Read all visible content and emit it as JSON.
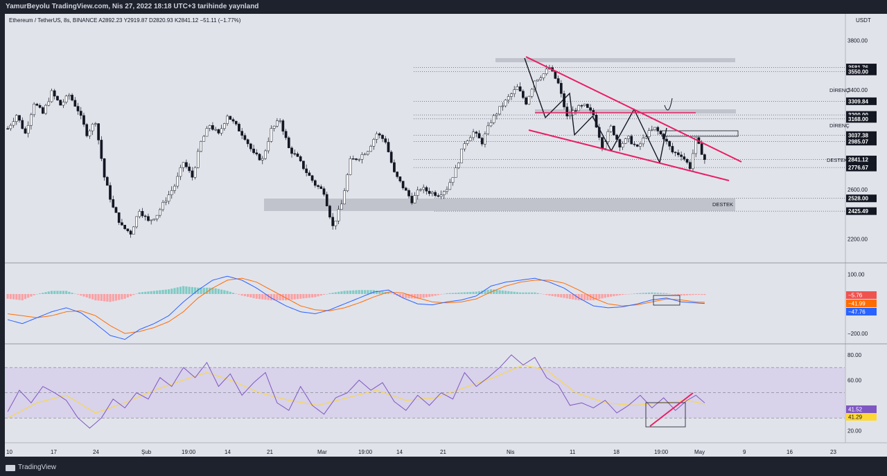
{
  "header": {
    "publish_line": "YamurBeyolu TradingView.com, Nis 27, 2022 18:18 UTC+3 tarihinde yaynland"
  },
  "symbol_line": "Ethereum / TetherUS, 8s, BINANCE  A2892.23  Y2919.87  D2820.93  K2841.12  −51.11 (−1.77%)",
  "footer": {
    "brand": "TradingView"
  },
  "colors": {
    "up": "#26a69a",
    "down": "#ef5350",
    "pink": "#e91e63",
    "macd": "#2962ff",
    "signal": "#ff6d00",
    "rsi": "#7e57c2",
    "rsi_ma": "#fdd835"
  },
  "chart_data": [
    {
      "type": "candlestick",
      "title": "Ethereum / TetherUS, 8s, BINANCE",
      "ohlc": {
        "open": 2892.23,
        "high": 2919.87,
        "low": 2820.93,
        "close": 2841.12,
        "change": -51.11,
        "change_pct": -1.77
      },
      "currency": "USDT",
      "y_ticks": [
        3800,
        3400,
        3200,
        2600,
        2200
      ],
      "y_tick_labels": [
        "3800.00",
        "3400.00",
        "3200.00",
        "2600.00",
        "2200.00"
      ],
      "ylim": [
        2120,
        3880
      ],
      "x_tick_labels": [
        "10",
        "17",
        "24",
        "Şub",
        "19:00",
        "14",
        "21",
        "Mar",
        "19:00",
        "14",
        "21",
        "Nis",
        "11",
        "18",
        "19:00",
        "May",
        "9",
        "16",
        "23"
      ],
      "price_tags": [
        {
          "value": 3581.76,
          "label": "3581.76"
        },
        {
          "value": 3550.0,
          "label": "3550.00"
        },
        {
          "value": 3309.84,
          "label": "3309.84"
        },
        {
          "value": 3200.0,
          "label": "3200.00"
        },
        {
          "value": 3168.0,
          "label": "3168.00"
        },
        {
          "value": 3037.38,
          "label": "3037.38"
        },
        {
          "value": 2985.07,
          "label": "2985.07"
        },
        {
          "value": 2841.12,
          "label": "2841.12",
          "sub": "41:35"
        },
        {
          "value": 2776.67,
          "label": "2776.67"
        },
        {
          "value": 2528.0,
          "label": "2528.00"
        },
        {
          "value": 2425.49,
          "label": "2425.49"
        }
      ],
      "annotations": [
        "DİRENÇ",
        "DİRENÇ",
        "DESTEK",
        "DESTEK"
      ],
      "price_path": [
        [
          0,
          3090
        ],
        [
          3,
          3200
        ],
        [
          6,
          3050
        ],
        [
          9,
          3300
        ],
        [
          12,
          3210
        ],
        [
          15,
          3380
        ],
        [
          18,
          3280
        ],
        [
          21,
          3360
        ],
        [
          24,
          3240
        ],
        [
          27,
          3050
        ],
        [
          30,
          3150
        ],
        [
          33,
          2700
        ],
        [
          36,
          2450
        ],
        [
          39,
          2300
        ],
        [
          42,
          2250
        ],
        [
          45,
          2440
        ],
        [
          48,
          2340
        ],
        [
          51,
          2400
        ],
        [
          54,
          2520
        ],
        [
          57,
          2630
        ],
        [
          60,
          2820
        ],
        [
          63,
          2700
        ],
        [
          66,
          2980
        ],
        [
          69,
          3120
        ],
        [
          72,
          3040
        ],
        [
          75,
          3200
        ],
        [
          78,
          3110
        ],
        [
          81,
          3020
        ],
        [
          84,
          2880
        ],
        [
          87,
          2840
        ],
        [
          90,
          3080
        ],
        [
          93,
          3160
        ],
        [
          96,
          2930
        ],
        [
          99,
          2850
        ],
        [
          102,
          2740
        ],
        [
          105,
          2640
        ],
        [
          108,
          2580
        ],
        [
          111,
          2300
        ],
        [
          114,
          2480
        ],
        [
          117,
          2830
        ],
        [
          120,
          2860
        ],
        [
          123,
          2920
        ],
        [
          126,
          3050
        ],
        [
          129,
          2990
        ],
        [
          132,
          2730
        ],
        [
          135,
          2620
        ],
        [
          138,
          2510
        ],
        [
          141,
          2610
        ],
        [
          144,
          2580
        ],
        [
          147,
          2560
        ],
        [
          150,
          2610
        ],
        [
          153,
          2760
        ],
        [
          156,
          2980
        ],
        [
          159,
          3060
        ],
        [
          162,
          2980
        ],
        [
          165,
          3150
        ],
        [
          168,
          3250
        ],
        [
          171,
          3340
        ],
        [
          174,
          3420
        ],
        [
          177,
          3300
        ],
        [
          180,
          3480
        ],
        [
          183,
          3530
        ],
        [
          185,
          3581
        ],
        [
          188,
          3450
        ],
        [
          191,
          3180
        ],
        [
          194,
          3250
        ],
        [
          197,
          3270
        ],
        [
          200,
          3200
        ],
        [
          203,
          2950
        ],
        [
          206,
          3100
        ],
        [
          209,
          2960
        ],
        [
          212,
          3010
        ],
        [
          215,
          2930
        ],
        [
          218,
          3040
        ],
        [
          221,
          3090
        ],
        [
          224,
          3020
        ],
        [
          227,
          2900
        ],
        [
          230,
          2880
        ],
        [
          233,
          2780
        ],
        [
          235,
          3000
        ],
        [
          237,
          2900
        ],
        [
          238,
          2841
        ]
      ],
      "candle_count": 239
    },
    {
      "type": "macd",
      "y_ticks": [
        100,
        -200
      ],
      "y_tick_labels": [
        "100.00",
        "−200.00"
      ],
      "ylim": [
        -235,
        140
      ],
      "values": {
        "histogram": "−5.76",
        "signal": "−41.99",
        "macd": "−47.76"
      },
      "macd_path": [
        [
          0,
          -130
        ],
        [
          5,
          -150
        ],
        [
          10,
          -120
        ],
        [
          15,
          -90
        ],
        [
          20,
          -70
        ],
        [
          25,
          -95
        ],
        [
          30,
          -150
        ],
        [
          35,
          -210
        ],
        [
          40,
          -230
        ],
        [
          45,
          -180
        ],
        [
          50,
          -150
        ],
        [
          55,
          -110
        ],
        [
          60,
          -40
        ],
        [
          65,
          20
        ],
        [
          70,
          70
        ],
        [
          75,
          90
        ],
        [
          80,
          70
        ],
        [
          85,
          30
        ],
        [
          90,
          -20
        ],
        [
          95,
          -60
        ],
        [
          100,
          -90
        ],
        [
          105,
          -100
        ],
        [
          110,
          -80
        ],
        [
          115,
          -50
        ],
        [
          120,
          -20
        ],
        [
          125,
          10
        ],
        [
          130,
          20
        ],
        [
          135,
          -20
        ],
        [
          140,
          -50
        ],
        [
          145,
          -55
        ],
        [
          150,
          -40
        ],
        [
          155,
          -30
        ],
        [
          160,
          -10
        ],
        [
          165,
          40
        ],
        [
          170,
          60
        ],
        [
          175,
          70
        ],
        [
          180,
          80
        ],
        [
          185,
          60
        ],
        [
          190,
          30
        ],
        [
          195,
          -20
        ],
        [
          200,
          -60
        ],
        [
          205,
          -70
        ],
        [
          210,
          -65
        ],
        [
          215,
          -50
        ],
        [
          220,
          -30
        ],
        [
          225,
          -20
        ],
        [
          230,
          -40
        ],
        [
          235,
          -45
        ],
        [
          238,
          -48
        ]
      ],
      "signal_path": [
        [
          0,
          -100
        ],
        [
          5,
          -110
        ],
        [
          10,
          -120
        ],
        [
          15,
          -110
        ],
        [
          20,
          -90
        ],
        [
          25,
          -85
        ],
        [
          30,
          -110
        ],
        [
          35,
          -160
        ],
        [
          40,
          -200
        ],
        [
          45,
          -190
        ],
        [
          50,
          -170
        ],
        [
          55,
          -140
        ],
        [
          60,
          -90
        ],
        [
          65,
          -20
        ],
        [
          70,
          30
        ],
        [
          75,
          70
        ],
        [
          80,
          80
        ],
        [
          85,
          60
        ],
        [
          90,
          20
        ],
        [
          95,
          -20
        ],
        [
          100,
          -60
        ],
        [
          105,
          -80
        ],
        [
          110,
          -85
        ],
        [
          115,
          -70
        ],
        [
          120,
          -45
        ],
        [
          125,
          -15
        ],
        [
          130,
          10
        ],
        [
          135,
          5
        ],
        [
          140,
          -20
        ],
        [
          145,
          -40
        ],
        [
          150,
          -45
        ],
        [
          155,
          -40
        ],
        [
          160,
          -25
        ],
        [
          165,
          10
        ],
        [
          170,
          40
        ],
        [
          175,
          60
        ],
        [
          180,
          70
        ],
        [
          185,
          70
        ],
        [
          190,
          55
        ],
        [
          195,
          20
        ],
        [
          200,
          -20
        ],
        [
          205,
          -50
        ],
        [
          210,
          -60
        ],
        [
          215,
          -55
        ],
        [
          220,
          -40
        ],
        [
          225,
          -25
        ],
        [
          230,
          -30
        ],
        [
          235,
          -40
        ],
        [
          238,
          -42
        ]
      ]
    },
    {
      "type": "rsi",
      "y_ticks": [
        80,
        60,
        20
      ],
      "y_tick_labels": [
        "80.00",
        "60.00",
        "20.00"
      ],
      "ylim": [
        12,
        86
      ],
      "band": [
        30,
        70
      ],
      "midline": 50,
      "values": {
        "rsi": "41.52",
        "rsi_ma": "41.29"
      },
      "rsi_path": [
        [
          0,
          35
        ],
        [
          4,
          52
        ],
        [
          8,
          42
        ],
        [
          12,
          55
        ],
        [
          16,
          50
        ],
        [
          20,
          44
        ],
        [
          24,
          30
        ],
        [
          28,
          22
        ],
        [
          32,
          30
        ],
        [
          36,
          45
        ],
        [
          40,
          38
        ],
        [
          44,
          50
        ],
        [
          48,
          45
        ],
        [
          52,
          62
        ],
        [
          56,
          55
        ],
        [
          60,
          70
        ],
        [
          64,
          62
        ],
        [
          68,
          74
        ],
        [
          72,
          55
        ],
        [
          76,
          65
        ],
        [
          80,
          48
        ],
        [
          84,
          58
        ],
        [
          88,
          66
        ],
        [
          92,
          42
        ],
        [
          96,
          36
        ],
        [
          100,
          55
        ],
        [
          104,
          40
        ],
        [
          108,
          33
        ],
        [
          112,
          46
        ],
        [
          116,
          50
        ],
        [
          120,
          60
        ],
        [
          124,
          52
        ],
        [
          128,
          58
        ],
        [
          132,
          43
        ],
        [
          136,
          36
        ],
        [
          140,
          48
        ],
        [
          144,
          40
        ],
        [
          148,
          50
        ],
        [
          152,
          45
        ],
        [
          156,
          66
        ],
        [
          160,
          55
        ],
        [
          164,
          62
        ],
        [
          168,
          70
        ],
        [
          172,
          80
        ],
        [
          176,
          72
        ],
        [
          180,
          78
        ],
        [
          184,
          62
        ],
        [
          188,
          56
        ],
        [
          192,
          40
        ],
        [
          196,
          42
        ],
        [
          200,
          38
        ],
        [
          204,
          44
        ],
        [
          208,
          34
        ],
        [
          212,
          40
        ],
        [
          216,
          48
        ],
        [
          220,
          38
        ],
        [
          224,
          46
        ],
        [
          228,
          36
        ],
        [
          232,
          44
        ],
        [
          235,
          48
        ],
        [
          238,
          42
        ]
      ],
      "rsi_ma_path": [
        [
          0,
          30
        ],
        [
          10,
          42
        ],
        [
          20,
          48
        ],
        [
          30,
          34
        ],
        [
          40,
          42
        ],
        [
          50,
          52
        ],
        [
          60,
          60
        ],
        [
          68,
          66
        ],
        [
          76,
          60
        ],
        [
          86,
          50
        ],
        [
          96,
          44
        ],
        [
          106,
          40
        ],
        [
          116,
          46
        ],
        [
          126,
          52
        ],
        [
          136,
          44
        ],
        [
          146,
          46
        ],
        [
          156,
          54
        ],
        [
          166,
          62
        ],
        [
          176,
          72
        ],
        [
          184,
          68
        ],
        [
          194,
          50
        ],
        [
          204,
          42
        ],
        [
          214,
          40
        ],
        [
          224,
          42
        ],
        [
          232,
          44
        ],
        [
          238,
          41
        ]
      ]
    }
  ]
}
